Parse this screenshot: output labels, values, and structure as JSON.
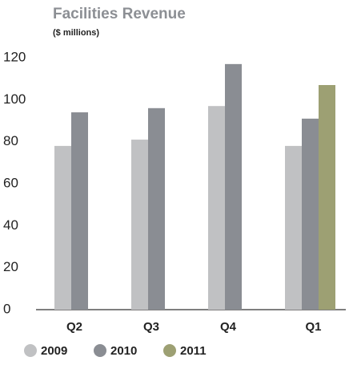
{
  "chart_data": {
    "type": "bar",
    "title": "Facilities Revenue",
    "subtitle": "($ millions)",
    "categories": [
      "Q2",
      "Q3",
      "Q4",
      "Q1"
    ],
    "series": [
      {
        "name": "2009",
        "color": "#c0c1c3",
        "values": [
          78,
          81,
          97,
          78
        ]
      },
      {
        "name": "2010",
        "color": "#8a8d93",
        "values": [
          94,
          96,
          117,
          91
        ]
      },
      {
        "name": "2011",
        "color": "#9da073",
        "values": [
          null,
          null,
          null,
          107
        ]
      }
    ],
    "ylim": [
      0,
      120
    ],
    "yticks": [
      0,
      20,
      40,
      60,
      80,
      100,
      120
    ],
    "grid": false,
    "legend": "bottom"
  }
}
